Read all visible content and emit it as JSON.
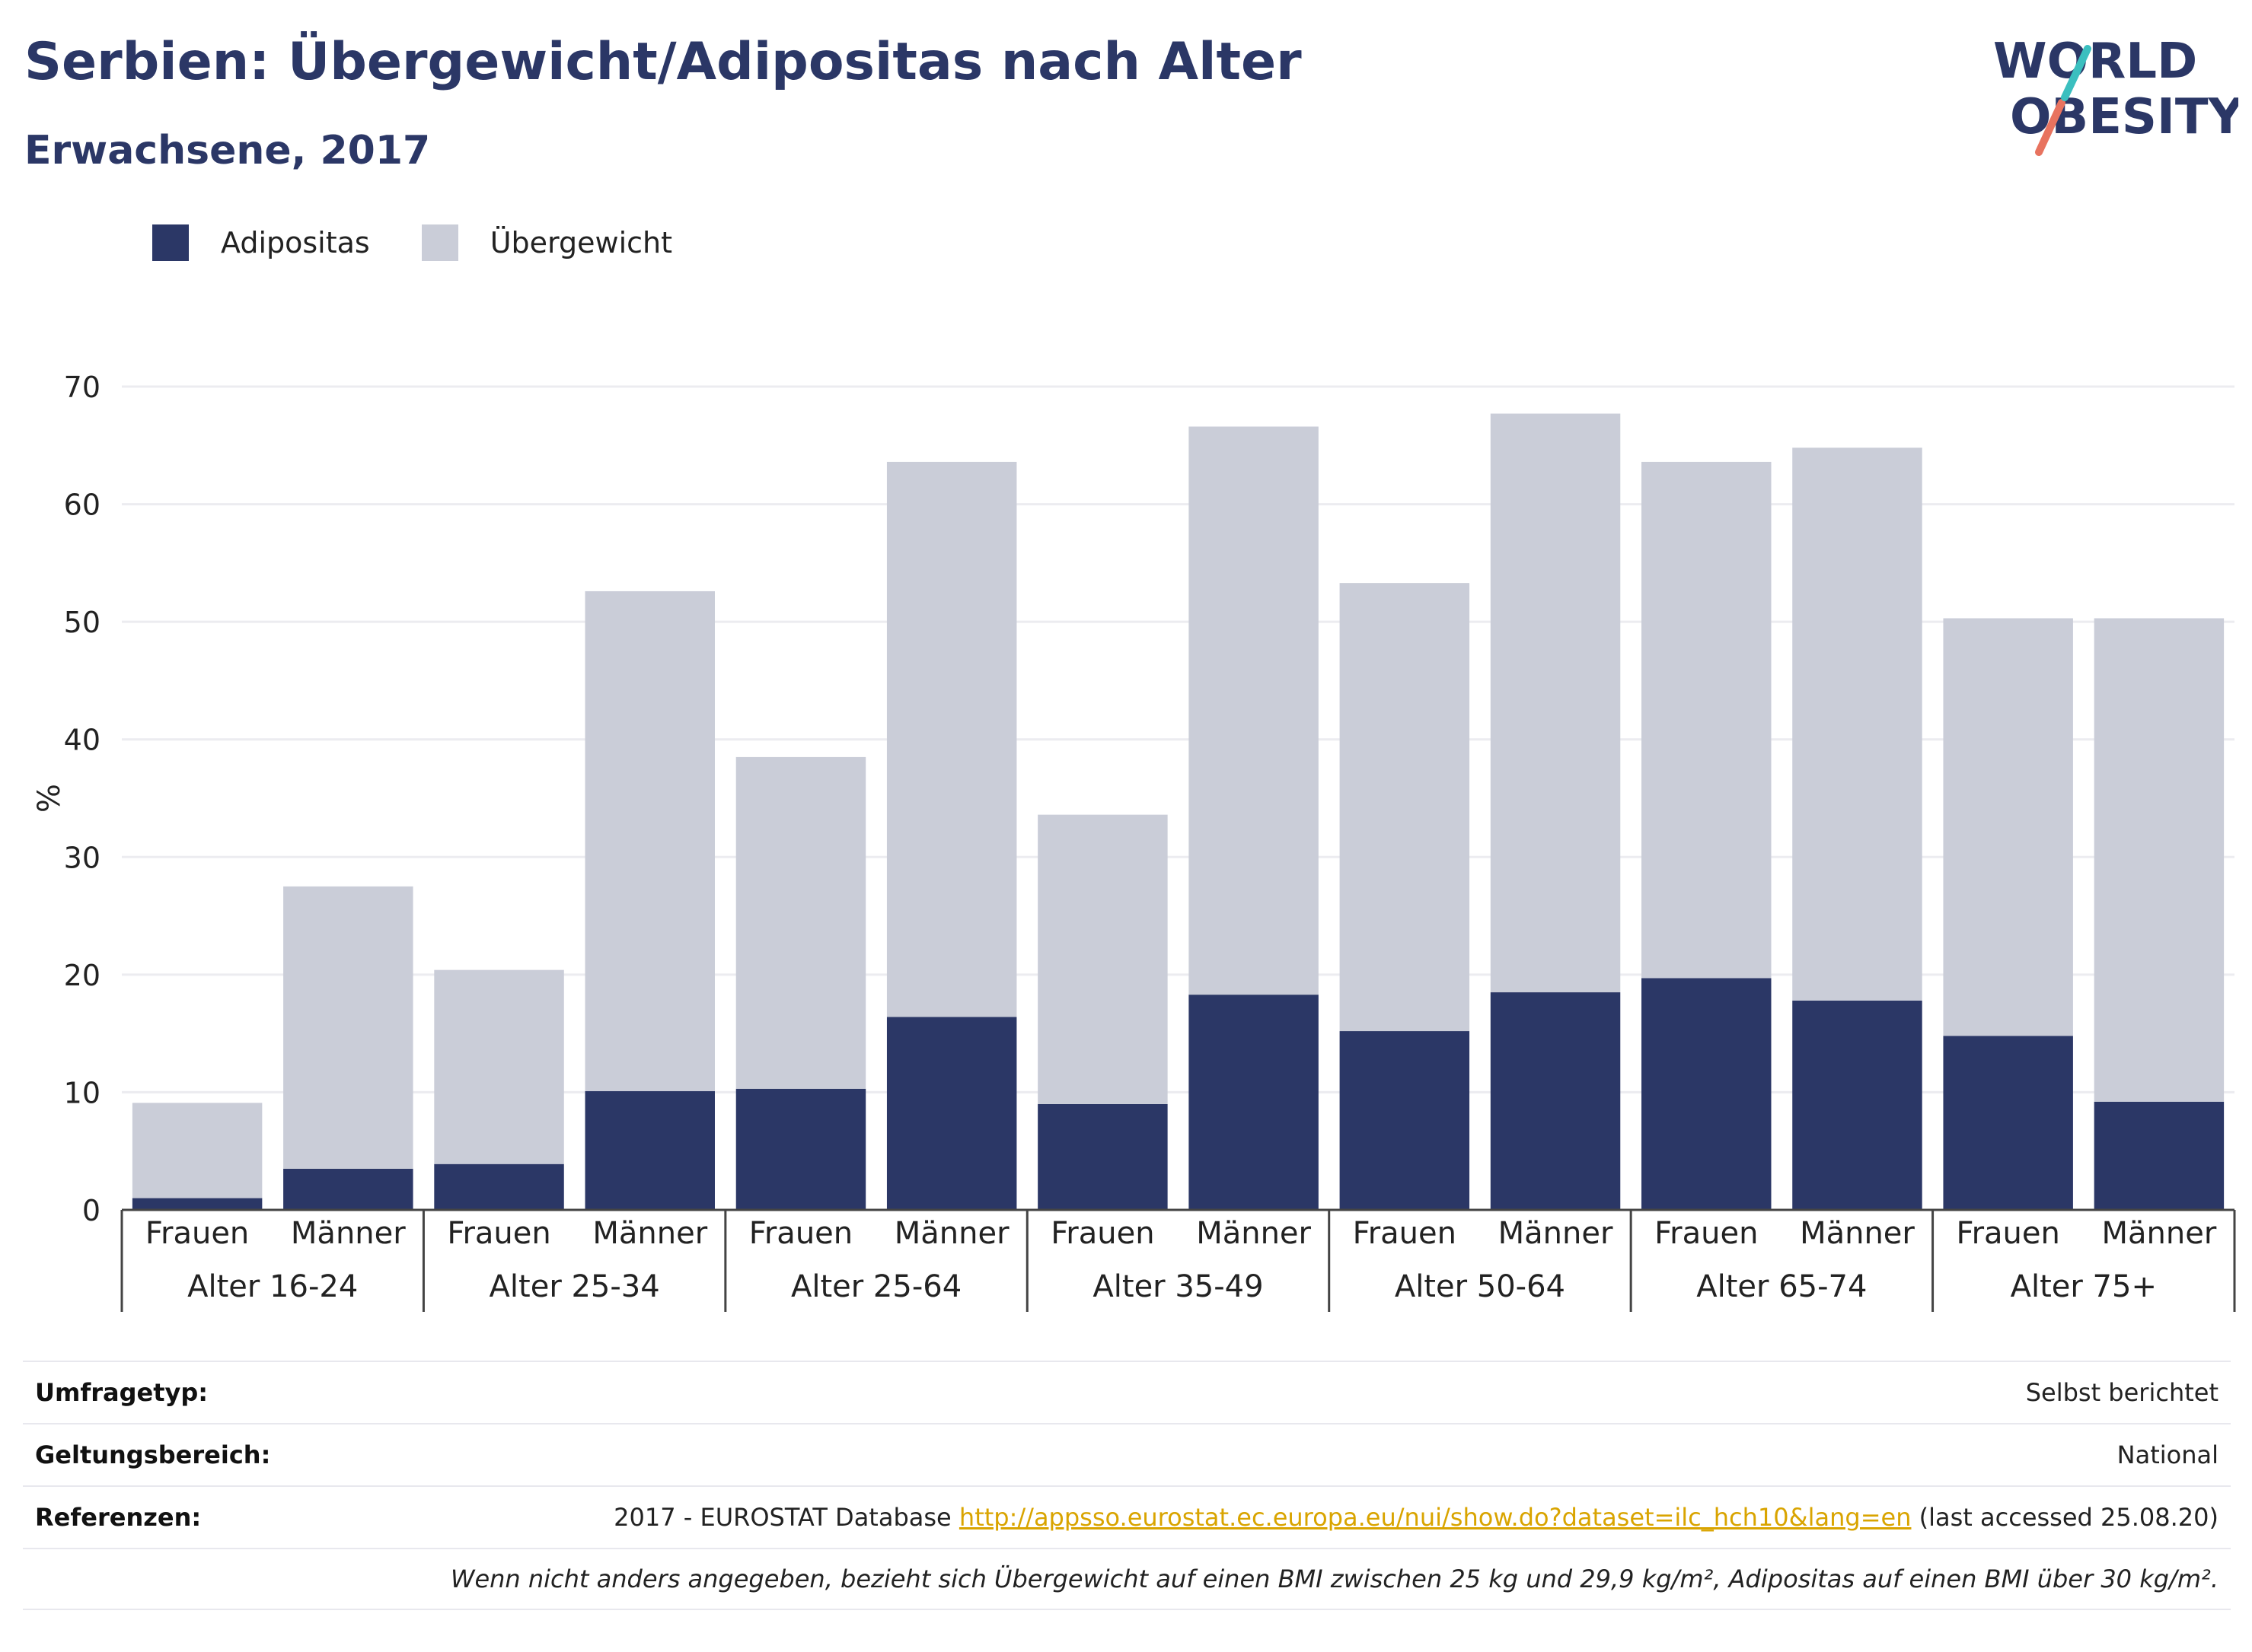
{
  "header": {
    "title": "Serbien: Übergewicht/Adipositas nach Alter",
    "subtitle": "Erwachsene, 2017",
    "logo_line1": "WORLD",
    "logo_line2": "OBESITY"
  },
  "colors": {
    "adipositas": "#2b3766",
    "uebergewicht": "#cacdd8",
    "accent_teal": "#3bbfbf",
    "accent_coral": "#e8735f",
    "link": "#d9a400"
  },
  "chart_data": {
    "type": "bar",
    "stacked": true,
    "ylabel": "%",
    "ylim": [
      0,
      70
    ],
    "yticks": [
      0,
      10,
      20,
      30,
      40,
      50,
      60,
      70
    ],
    "grid": true,
    "legend_position": "top-left",
    "groups": [
      "Alter 16-24",
      "Alter 25-34",
      "Alter 25-64",
      "Alter 35-49",
      "Alter 50-64",
      "Alter 65-74",
      "Alter 75+"
    ],
    "subcategories": [
      "Frauen",
      "Männer"
    ],
    "series": [
      {
        "name": "Adipositas",
        "values": [
          1.0,
          3.5,
          3.9,
          10.1,
          10.3,
          16.4,
          9.0,
          18.3,
          15.2,
          18.5,
          19.7,
          17.8,
          14.8,
          9.2
        ]
      },
      {
        "name": "Übergewicht",
        "values": [
          8.1,
          24.0,
          16.5,
          42.5,
          28.2,
          47.2,
          24.6,
          48.3,
          38.1,
          49.2,
          43.9,
          47.0,
          35.5,
          41.1
        ]
      }
    ]
  },
  "info": {
    "umfragetyp_label": "Umfragetyp:",
    "umfragetyp_value": "Selbst berichtet",
    "geltung_label": "Geltungsbereich:",
    "geltung_value": "National",
    "referenzen_label": "Referenzen:",
    "ref_prefix": "2017 - EUROSTAT Database",
    "ref_link": "http://appsso.eurostat.ec.europa.eu/nui/show.do?dataset=ilc_hch10&lang=en",
    "ref_suffix": "(last accessed 25.08.20)",
    "note": "Wenn nicht anders angegeben, bezieht sich Übergewicht auf einen BMI zwischen 25 kg und 29,9 kg/m², Adipositas auf einen BMI über 30 kg/m²."
  }
}
